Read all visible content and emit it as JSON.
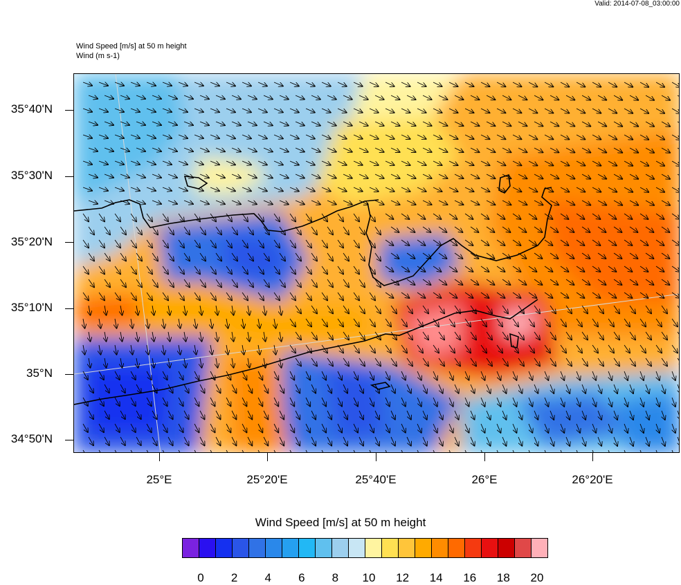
{
  "header": {
    "valid": "Valid: 2014-07-08_03:00:00",
    "title_line1": "Wind Speed [m/s] at 50 m height",
    "title_line2": "Wind   (m s-1)"
  },
  "map": {
    "lat_labels": [
      "35°40'N",
      "35°30'N",
      "35°20'N",
      "35°10'N",
      "35°N",
      "34°50'N"
    ],
    "lon_labels": [
      "25°E",
      "25°20'E",
      "25°40'E",
      "26°E",
      "26°20'E"
    ]
  },
  "colorbar": {
    "title": "Wind Speed [m/s] at 50 m height",
    "labels": [
      "0",
      "2",
      "4",
      "6",
      "8",
      "10",
      "12",
      "14",
      "16",
      "18",
      "20"
    ],
    "colors": [
      "#7a22e0",
      "#2a10f0",
      "#1530f0",
      "#2a55e8",
      "#3072e6",
      "#2a88ea",
      "#25a0f0",
      "#22b8f5",
      "#60c0ee",
      "#9ccfee",
      "#c8e6f4",
      "#fff4a0",
      "#ffe052",
      "#ffc53a",
      "#ffaa00",
      "#ff8c00",
      "#ff6a00",
      "#f53a10",
      "#e81010",
      "#cc0000",
      "#e04848",
      "#ffb0b8"
    ]
  }
}
